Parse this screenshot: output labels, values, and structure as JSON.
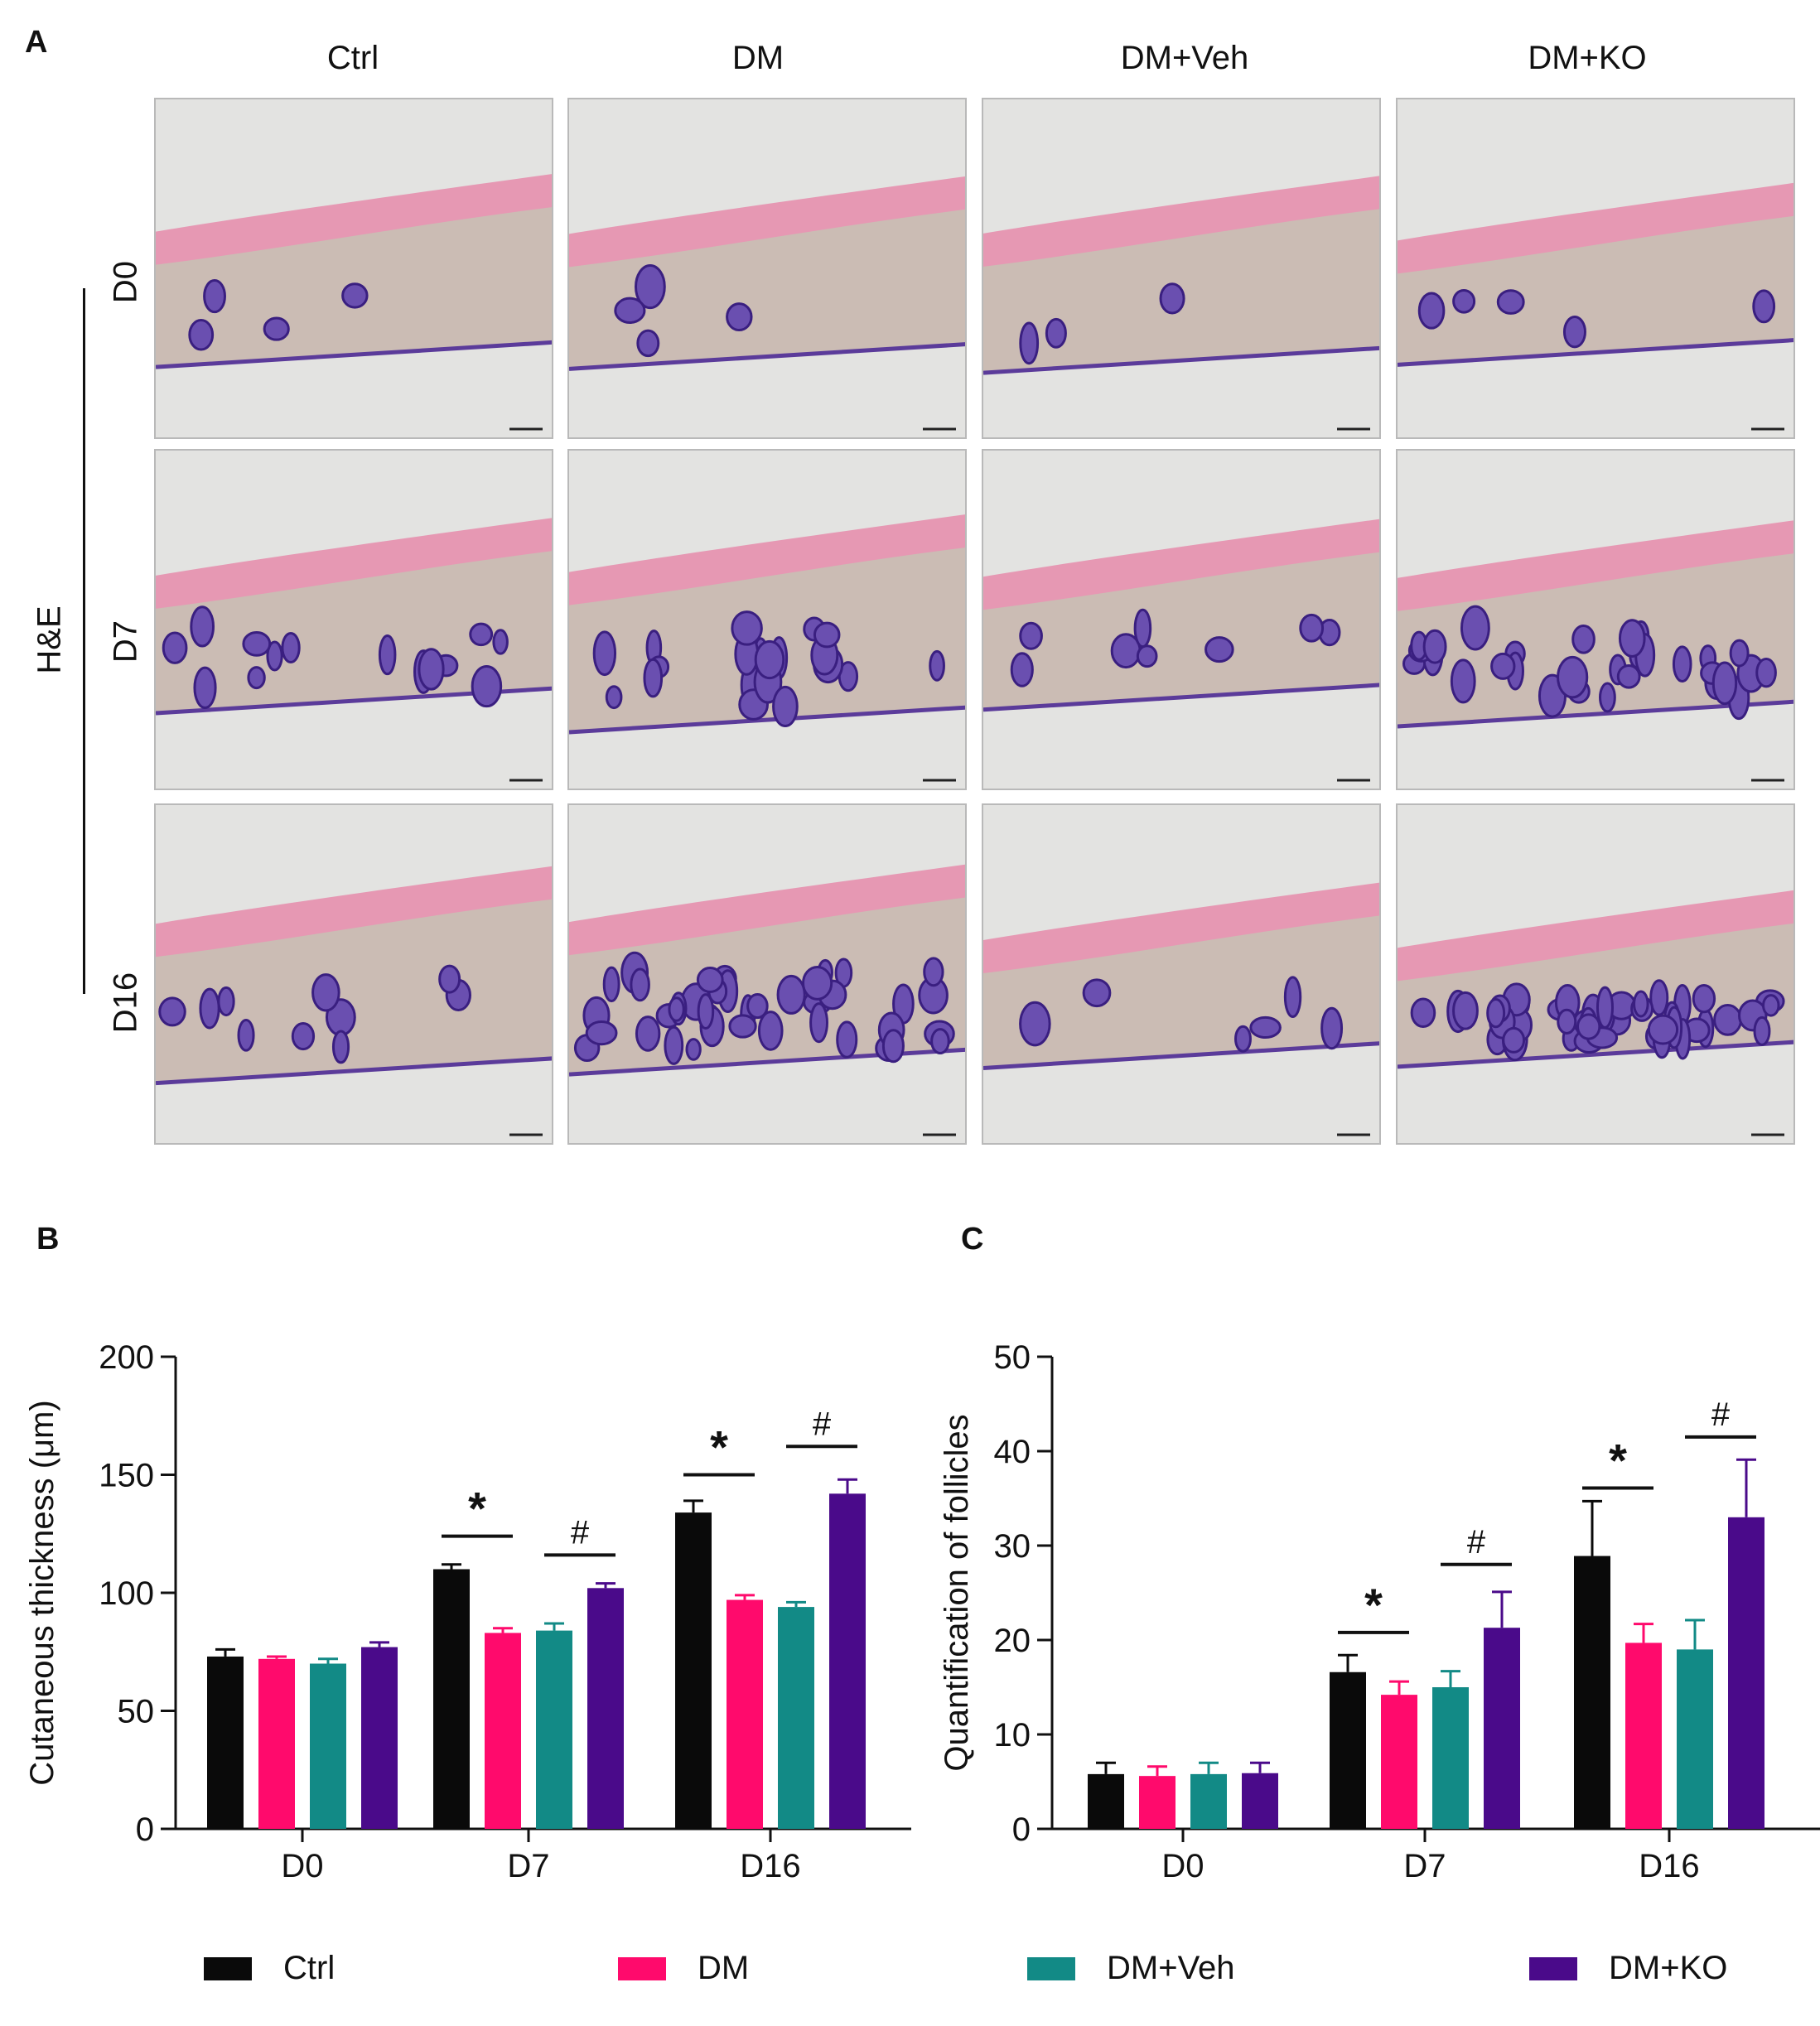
{
  "panels": {
    "a": "A",
    "b": "B",
    "c": "C"
  },
  "micrographs": {
    "columns": [
      "Ctrl",
      "DM",
      "DM+Veh",
      "DM+KO"
    ],
    "rows": [
      "D0",
      "D7",
      "D16"
    ],
    "stain": "H&E"
  },
  "colors": {
    "Ctrl": "#0a0a0a",
    "DM": "#ff0a6c",
    "DM+Veh": "#128a86",
    "DM+KO": "#4a0a8a"
  },
  "legend": [
    "Ctrl",
    "DM",
    "DM+Veh",
    "DM+KO"
  ],
  "chart_data": [
    {
      "type": "bar",
      "panel": "B",
      "ylabel": "Cutaneous thickness (μm)",
      "categories": [
        "D0",
        "D7",
        "D16"
      ],
      "ylim": [
        0,
        200
      ],
      "yticks": [
        0,
        50,
        100,
        150,
        200
      ],
      "series": [
        {
          "name": "Ctrl",
          "values": [
            73,
            110,
            134
          ],
          "errors": [
            3,
            2,
            5
          ]
        },
        {
          "name": "DM",
          "values": [
            72,
            83,
            97
          ],
          "errors": [
            1,
            2,
            2
          ]
        },
        {
          "name": "DM+Veh",
          "values": [
            70,
            84,
            94
          ],
          "errors": [
            2,
            3,
            2
          ]
        },
        {
          "name": "DM+KO",
          "values": [
            77,
            102,
            142
          ],
          "errors": [
            2,
            2,
            6
          ]
        }
      ],
      "annotations": [
        {
          "text": "*",
          "category": "D7",
          "from": "Ctrl",
          "to": "DM",
          "y": 124
        },
        {
          "text": "#",
          "category": "D7",
          "from": "DM+Veh",
          "to": "DM+KO",
          "y": 116
        },
        {
          "text": "*",
          "category": "D16",
          "from": "Ctrl",
          "to": "DM",
          "y": 150
        },
        {
          "text": "#",
          "category": "D16",
          "from": "DM+Veh",
          "to": "DM+KO",
          "y": 162
        }
      ],
      "grid": false
    },
    {
      "type": "bar",
      "panel": "C",
      "ylabel": "Quantification of follicles",
      "categories": [
        "D0",
        "D7",
        "D16"
      ],
      "ylim": [
        0,
        50
      ],
      "yticks": [
        0,
        10,
        20,
        30,
        40,
        50
      ],
      "series": [
        {
          "name": "Ctrl",
          "values": [
            5.8,
            16.6,
            28.9
          ],
          "errors": [
            1.2,
            1.8,
            5.8
          ]
        },
        {
          "name": "DM",
          "values": [
            5.6,
            14.2,
            19.7
          ],
          "errors": [
            1.0,
            1.4,
            2.0
          ]
        },
        {
          "name": "DM+Veh",
          "values": [
            5.8,
            15.0,
            19.0
          ],
          "errors": [
            1.2,
            1.7,
            3.1
          ]
        },
        {
          "name": "DM+KO",
          "values": [
            5.9,
            21.3,
            33.0
          ],
          "errors": [
            1.1,
            3.8,
            6.1
          ]
        }
      ],
      "annotations": [
        {
          "text": "*",
          "category": "D7",
          "from": "Ctrl",
          "to": "DM",
          "y": 20.8
        },
        {
          "text": "#",
          "category": "D7",
          "from": "DM+Veh",
          "to": "DM+KO",
          "y": 28.0
        },
        {
          "text": "*",
          "category": "D16",
          "from": "Ctrl",
          "to": "DM",
          "y": 36.1
        },
        {
          "text": "#",
          "category": "D16",
          "from": "DM+Veh",
          "to": "DM+KO",
          "y": 41.5
        }
      ],
      "grid": false
    }
  ]
}
